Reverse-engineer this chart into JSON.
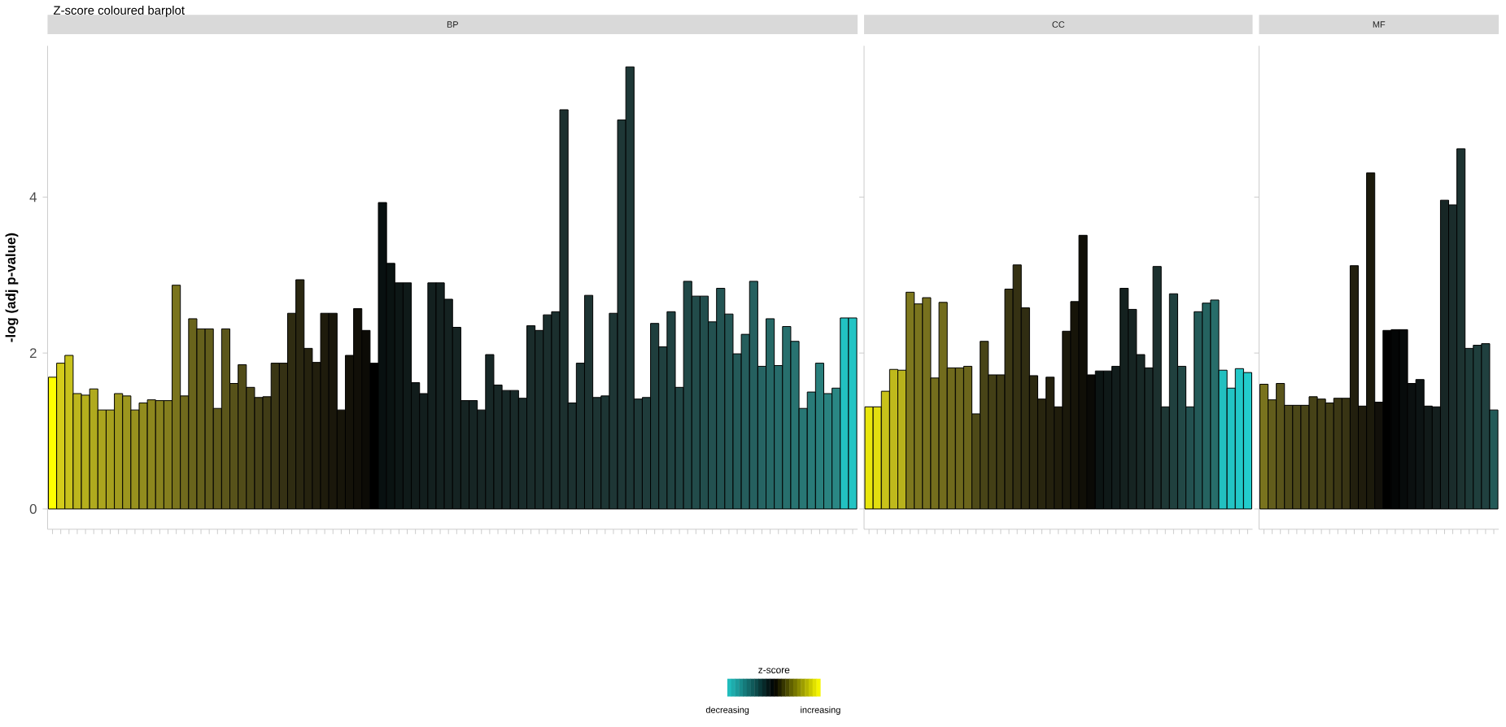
{
  "chart_data": [
    {
      "type": "bar",
      "title": "Z-score coloured barplot",
      "subtitle": "BP",
      "ylabel": "-log (adj p-value)",
      "clabel": "z-score",
      "annotations": [
        "decreasing",
        "increasing"
      ],
      "categories": [
        null,
        null,
        null,
        null,
        null,
        null,
        null,
        null,
        null,
        null,
        null,
        null,
        null,
        null,
        null,
        null,
        null,
        null,
        null,
        null,
        null,
        null,
        null,
        null,
        null,
        null,
        null,
        null,
        null,
        null,
        null,
        null,
        null,
        null,
        null,
        null,
        null,
        null,
        null,
        null,
        null,
        null,
        null,
        null,
        null,
        null,
        null,
        null,
        null,
        null,
        null,
        null,
        null,
        null,
        null,
        null,
        null,
        null,
        null,
        null,
        null,
        null,
        null,
        null,
        null,
        null,
        null,
        null,
        null,
        null,
        null,
        null,
        null,
        null,
        null,
        null,
        null,
        null,
        null,
        null,
        null,
        null,
        null,
        null,
        null,
        null,
        null,
        null,
        null,
        null,
        null,
        null,
        null,
        null,
        null,
        null,
        null,
        null
      ],
      "values": [
        1.69,
        1.87,
        1.97,
        1.48,
        1.46,
        1.54,
        1.27,
        1.27,
        1.48,
        1.45,
        1.27,
        1.36,
        1.4,
        1.39,
        1.39,
        2.87,
        1.45,
        2.44,
        2.31,
        2.31,
        1.29,
        2.31,
        1.61,
        1.85,
        1.56,
        1.43,
        1.44,
        1.87,
        1.87,
        2.51,
        2.94,
        2.06,
        1.88,
        2.51,
        2.51,
        1.27,
        1.97,
        2.57,
        2.29,
        1.87,
        3.93,
        3.15,
        2.9,
        2.9,
        1.62,
        1.48,
        2.9,
        2.9,
        2.69,
        2.33,
        1.39,
        1.39,
        1.27,
        1.98,
        1.59,
        1.52,
        1.52,
        1.42,
        2.35,
        2.29,
        2.49,
        2.53,
        5.12,
        1.36,
        1.87,
        2.74,
        1.43,
        1.45,
        2.51,
        4.99,
        5.67,
        1.41,
        1.43,
        2.38,
        2.08,
        2.53,
        1.56,
        2.92,
        2.73,
        2.73,
        2.4,
        2.83,
        2.5,
        1.99,
        2.24,
        2.92,
        1.83,
        2.44,
        1.84,
        2.34,
        2.15,
        1.29,
        1.5,
        1.87,
        1.48,
        1.55,
        2.45,
        2.45
      ],
      "colors": [
        "#ffff00",
        "#d4cc1a",
        "#c8c21c",
        "#bcb61d",
        "#b5af1d",
        "#b0aa1e",
        "#aba51e",
        "#a6a01e",
        "#a19b1e",
        "#9c961e",
        "#97911e",
        "#928c1e",
        "#8d871e",
        "#88821e",
        "#847e1e",
        "#7a741d",
        "#706a1d",
        "#69641c",
        "#65601c",
        "#625d1c",
        "#5f5a1b",
        "#5b561b",
        "#57521a",
        "#514c19",
        "#4b4718",
        "#454117",
        "#403c16",
        "#3a3615",
        "#353114",
        "#2f2c12",
        "#2a2711",
        "#26230f",
        "#221f0e",
        "#1e1b0c",
        "#1a170b",
        "#17150a",
        "#141209",
        "#110f08",
        "#0c0b06",
        "#000000",
        "#081010",
        "#0a1312",
        "#0d1716",
        "#0f1a19",
        "#111c1b",
        "#121e1d",
        "#13201f",
        "#142120",
        "#152221",
        "#152322",
        "#162423",
        "#162524",
        "#172625",
        "#172726",
        "#182827",
        "#182928",
        "#192a29",
        "#192b2a",
        "#1a2c2b",
        "#1a2d2c",
        "#1b2e2d",
        "#1b2f2e",
        "#1c302f",
        "#1c3130",
        "#1c3231",
        "#1d3332",
        "#1d3433",
        "#1d3534",
        "#1e3635",
        "#1e3736",
        "#1e3837",
        "#1f3a39",
        "#1f3c3b",
        "#1f3e3d",
        "#20403f",
        "#204241",
        "#214544",
        "#214847",
        "#224b4a",
        "#224e4d",
        "#235150",
        "#235453",
        "#245756",
        "#245a59",
        "#255d5c",
        "#25605f",
        "#266463",
        "#266866",
        "#276b6a",
        "#276f6d",
        "#287371",
        "#287774",
        "#297b78",
        "#297f7c",
        "#2a8380",
        "#2a8784",
        "#22c1c1",
        "#22c4c4"
      ],
      "ylim": [
        -0.26,
        5.94
      ],
      "yticks": [
        0,
        2,
        4
      ]
    },
    {
      "type": "bar",
      "subtitle": "CC",
      "tick_labels": "x",
      "categories": [
        null,
        null,
        null,
        null,
        null,
        null,
        null,
        null,
        null,
        null,
        null,
        null,
        null,
        null,
        null,
        null,
        null,
        null,
        null,
        null,
        null,
        null,
        null,
        null,
        null,
        null,
        null,
        null,
        null,
        null,
        null,
        null,
        null,
        null,
        null,
        null,
        null,
        null,
        null,
        null,
        null,
        null,
        null,
        null,
        null,
        null,
        null
      ],
      "values": [
        1.31,
        1.31,
        1.51,
        1.79,
        1.78,
        2.78,
        2.63,
        2.71,
        1.68,
        2.65,
        1.81,
        1.81,
        1.83,
        1.22,
        2.15,
        1.72,
        1.72,
        2.82,
        3.13,
        2.58,
        1.71,
        1.41,
        1.69,
        1.31,
        2.28,
        2.66,
        3.51,
        1.72,
        1.77,
        1.77,
        1.83,
        2.83,
        2.56,
        1.98,
        1.81,
        3.11,
        1.31,
        2.76,
        1.83,
        1.31,
        2.53,
        2.64,
        2.68,
        1.78,
        1.55,
        1.8,
        1.75
      ],
      "colors": [
        "#e8e60c",
        "#e2de10",
        "#c8c21a",
        "#bfb91c",
        "#b8b21c",
        "#7e781e",
        "#7a741e",
        "#77711e",
        "#746e1d",
        "#726c1d",
        "#706a1d",
        "#6e681d",
        "#6b651c",
        "#4e4a18",
        "#484417",
        "#433f16",
        "#3f3b15",
        "#3b3714",
        "#353113",
        "#302d12",
        "#2c2910",
        "#28250f",
        "#24210e",
        "#201d0c",
        "#1b190b",
        "#161409",
        "#100f07",
        "#0a0a06",
        "#0c1514",
        "#0f1918",
        "#121d1c",
        "#14211f",
        "#162422",
        "#182826",
        "#1a2c2a",
        "#1c302e",
        "#1e3735",
        "#20403e",
        "#224846",
        "#235150",
        "#245a58",
        "#256360",
        "#276d6a",
        "#22c0c0",
        "#22c4c4",
        "#22c8c8",
        "#22cccc"
      ],
      "ylim": [
        -0.26,
        5.94
      ],
      "yticks": [
        0,
        2,
        4
      ]
    },
    {
      "type": "bar",
      "subtitle": "MF",
      "tick_labels": "x",
      "categories": [
        null,
        null,
        null,
        null,
        null,
        null,
        null,
        null,
        null,
        null,
        null,
        null,
        null,
        null,
        null,
        null,
        null,
        null,
        null,
        null,
        null,
        null,
        null,
        null,
        null,
        null,
        null,
        null,
        null
      ],
      "values": [
        1.6,
        1.4,
        1.61,
        1.33,
        1.33,
        1.33,
        1.44,
        1.41,
        1.36,
        1.42,
        1.42,
        3.12,
        1.32,
        4.31,
        1.37,
        2.29,
        2.3,
        2.3,
        1.61,
        1.66,
        1.32,
        1.31,
        3.96,
        3.9,
        4.62,
        2.06,
        2.1,
        2.12,
        1.27
      ],
      "colors": [
        "#79731e",
        "#625d1c",
        "#59541b",
        "#4e4a19",
        "#4b4718",
        "#484418",
        "#464217",
        "#444017",
        "#423e16",
        "#3c3815",
        "#383414",
        "#221f0e",
        "#1f1c0d",
        "#1c1a0c",
        "#12100a",
        "#000000",
        "#040606",
        "#070b0b",
        "#0b1010",
        "#0d1414",
        "#111a19",
        "#141f1e",
        "#172625",
        "#1a2c2b",
        "#1d3331",
        "#1e3a38",
        "#1f3e3c",
        "#20403f",
        "#235a58"
      ],
      "ylim": [
        -0.26,
        5.94
      ],
      "yticks": [
        0,
        2,
        4
      ]
    }
  ]
}
